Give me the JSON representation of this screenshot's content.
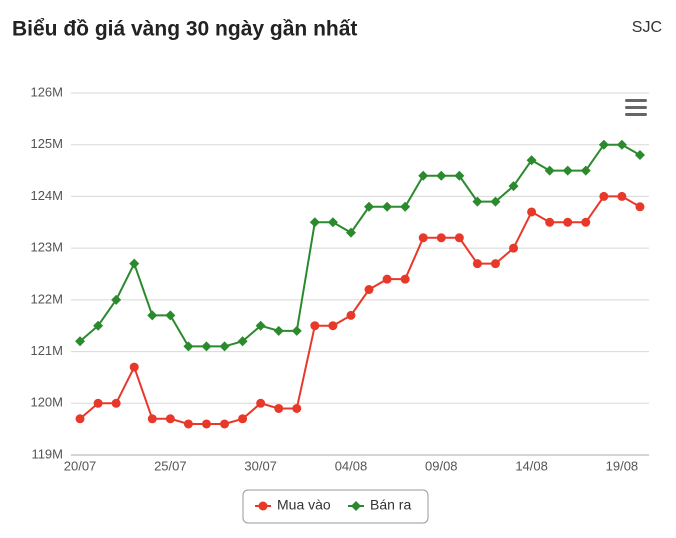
{
  "chart_data": {
    "type": "line",
    "title": "Biểu đồ giá vàng 30 ngày gần nhất",
    "subtitle": "SJC",
    "categories": [
      "20/07",
      null,
      null,
      null,
      null,
      "25/07",
      null,
      null,
      null,
      null,
      "30/07",
      null,
      null,
      null,
      null,
      "04/08",
      null,
      null,
      null,
      null,
      "09/08",
      null,
      null,
      null,
      null,
      "14/08",
      null,
      null,
      null,
      null,
      "19/08",
      null
    ],
    "series": [
      {
        "name": "Mua vào",
        "color": "#e8382a",
        "marker": "circle",
        "values": [
          119.7,
          120.0,
          120.0,
          120.7,
          119.7,
          119.7,
          119.6,
          119.6,
          119.6,
          119.7,
          120.0,
          119.9,
          119.9,
          121.5,
          121.5,
          121.7,
          122.2,
          122.4,
          122.4,
          123.2,
          123.2,
          123.2,
          122.7,
          122.7,
          123.0,
          123.7,
          123.5,
          123.5,
          123.5,
          124.0,
          124.0,
          123.8
        ]
      },
      {
        "name": "Bán ra",
        "color": "#2b8a2e",
        "marker": "diamond",
        "values": [
          121.2,
          121.5,
          122.0,
          122.7,
          121.7,
          121.7,
          121.1,
          121.1,
          121.1,
          121.2,
          121.5,
          121.4,
          121.4,
          123.5,
          123.5,
          123.3,
          123.8,
          123.8,
          123.8,
          124.4,
          124.4,
          124.4,
          123.9,
          123.9,
          124.2,
          124.7,
          124.5,
          124.5,
          124.5,
          125.0,
          125.0,
          124.8
        ]
      }
    ],
    "ylim": [
      119,
      126
    ],
    "yticks": [
      {
        "value": 119,
        "label": "119M"
      },
      {
        "value": 120,
        "label": "120M"
      },
      {
        "value": 121,
        "label": "121M"
      },
      {
        "value": 122,
        "label": "122M"
      },
      {
        "value": 123,
        "label": "123M"
      },
      {
        "value": 124,
        "label": "124M"
      },
      {
        "value": 125,
        "label": "125M"
      },
      {
        "value": 126,
        "label": "126M"
      }
    ],
    "grid": true,
    "legend": "bottom"
  }
}
